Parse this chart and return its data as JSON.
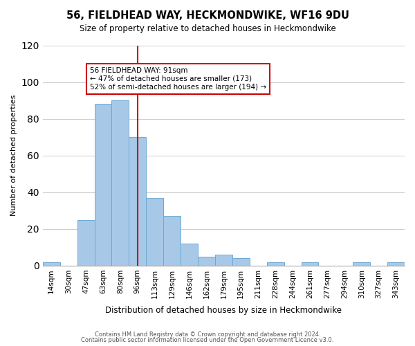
{
  "title": "56, FIELDHEAD WAY, HECKMONDWIKE, WF16 9DU",
  "subtitle": "Size of property relative to detached houses in Heckmondwike",
  "xlabel": "Distribution of detached houses by size in Heckmondwike",
  "ylabel": "Number of detached properties",
  "bin_labels": [
    "14sqm",
    "30sqm",
    "47sqm",
    "63sqm",
    "80sqm",
    "96sqm",
    "113sqm",
    "129sqm",
    "146sqm",
    "162sqm",
    "179sqm",
    "195sqm",
    "211sqm",
    "228sqm",
    "244sqm",
    "261sqm",
    "277sqm",
    "294sqm",
    "310sqm",
    "327sqm",
    "343sqm"
  ],
  "bar_values": [
    2,
    0,
    25,
    88,
    90,
    70,
    37,
    27,
    12,
    5,
    6,
    4,
    0,
    2,
    0,
    2,
    0,
    0,
    2,
    0,
    2
  ],
  "bar_color": "#a8c8e8",
  "bar_edge_color": "#6aaad4",
  "vline_x_index": 5,
  "vline_color": "#cc0000",
  "ylim": [
    0,
    120
  ],
  "annotation_text": "56 FIELDHEAD WAY: 91sqm\n← 47% of detached houses are smaller (173)\n52% of semi-detached houses are larger (194) →",
  "annotation_box_color": "#ffffff",
  "annotation_box_edge_color": "#cc0000",
  "footer_line1": "Contains HM Land Registry data © Crown copyright and database right 2024.",
  "footer_line2": "Contains public sector information licensed under the Open Government Licence v3.0.",
  "background_color": "#ffffff",
  "grid_color": "#cccccc"
}
